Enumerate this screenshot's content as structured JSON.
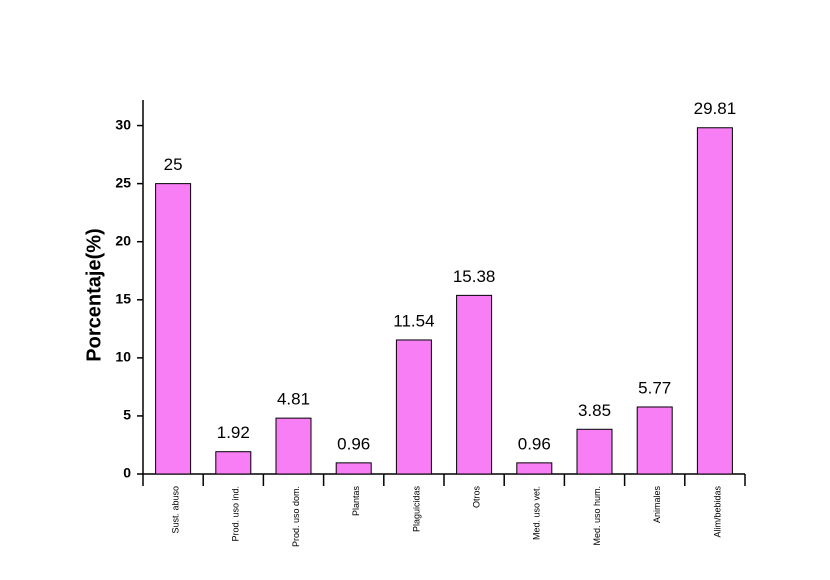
{
  "chart_data": {
    "type": "bar",
    "y_label": "Porcentaje(%)",
    "categories": [
      "Sust. abuso",
      "Prod. uso ind.",
      "Prod. uso dom.",
      "Plantas",
      "Plaguicidas",
      "Otros",
      "Med. uso vet.",
      "Med. uso hum.",
      "Animales",
      "Alim/bebidas"
    ],
    "values": [
      25,
      1.92,
      4.81,
      0.96,
      11.54,
      15.38,
      0.96,
      3.85,
      5.77,
      29.81
    ],
    "color": "#f77ef5",
    "ylim": [
      0,
      32.2
    ],
    "yticks": [
      0,
      5,
      10,
      15,
      20,
      25,
      30
    ],
    "grid": false
  }
}
